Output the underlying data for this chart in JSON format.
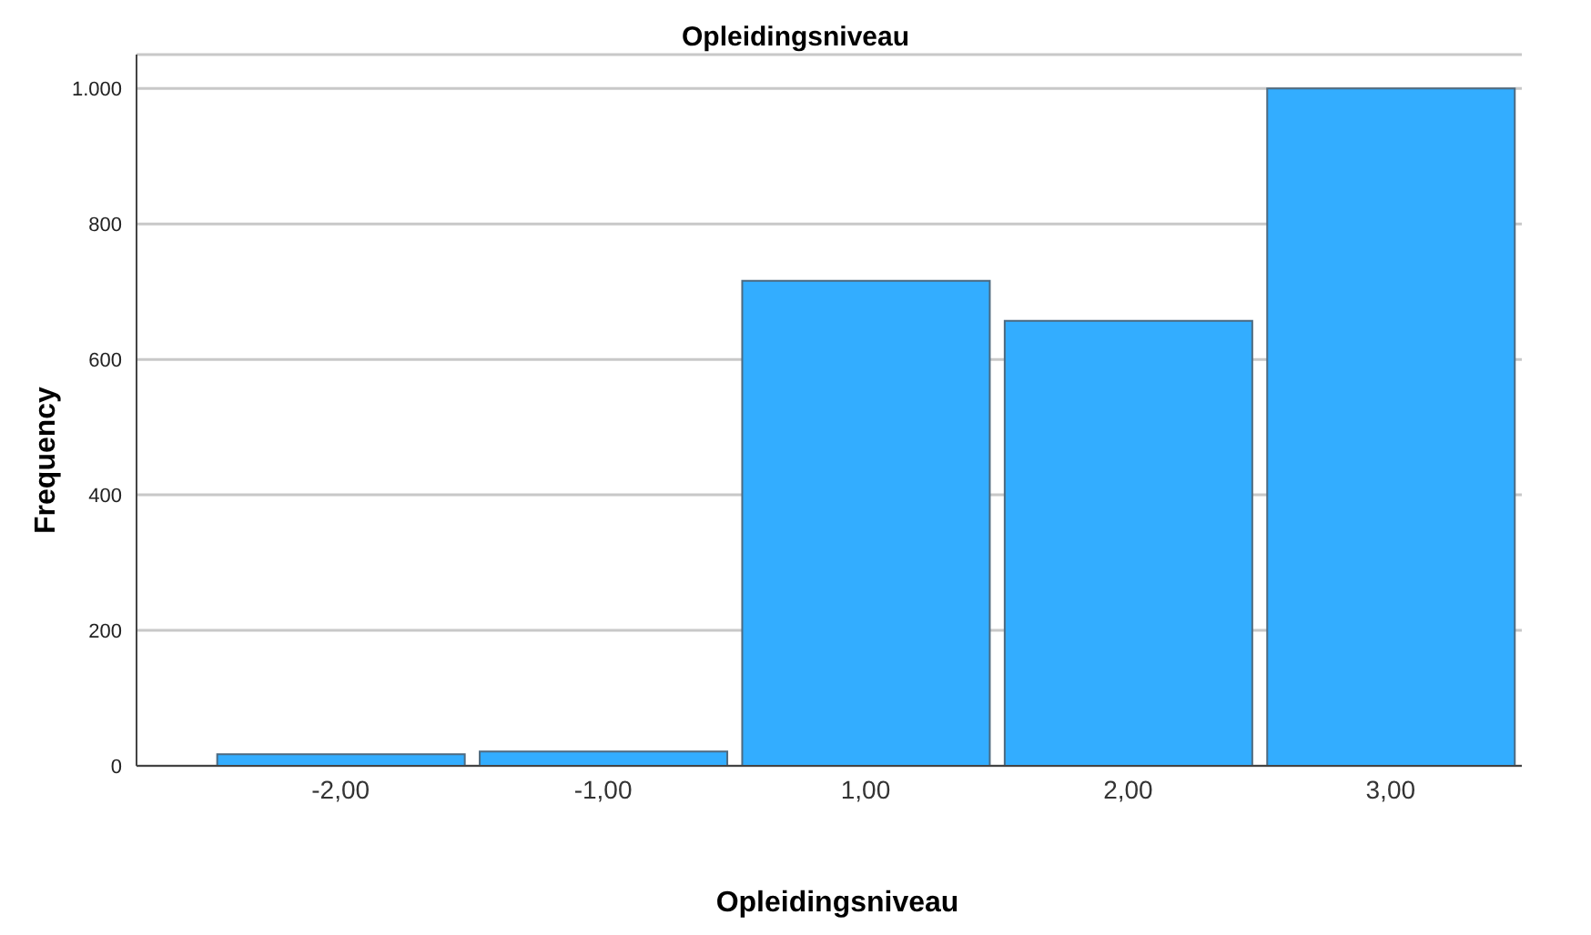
{
  "chart_data": {
    "type": "bar",
    "title": "Opleidingsniveau",
    "xlabel": "Opleidingsniveau",
    "ylabel": "Frequency",
    "categories": [
      "-2,00",
      "-1,00",
      "1,00",
      "2,00",
      "3,00"
    ],
    "values": [
      17,
      21,
      716,
      657,
      1000
    ],
    "color": "#33adff",
    "ylim": [
      0,
      1050
    ],
    "yticks": [
      0,
      200,
      400,
      600,
      800,
      {
        "value": 1000,
        "label": "1.000"
      }
    ],
    "grid": "y"
  }
}
